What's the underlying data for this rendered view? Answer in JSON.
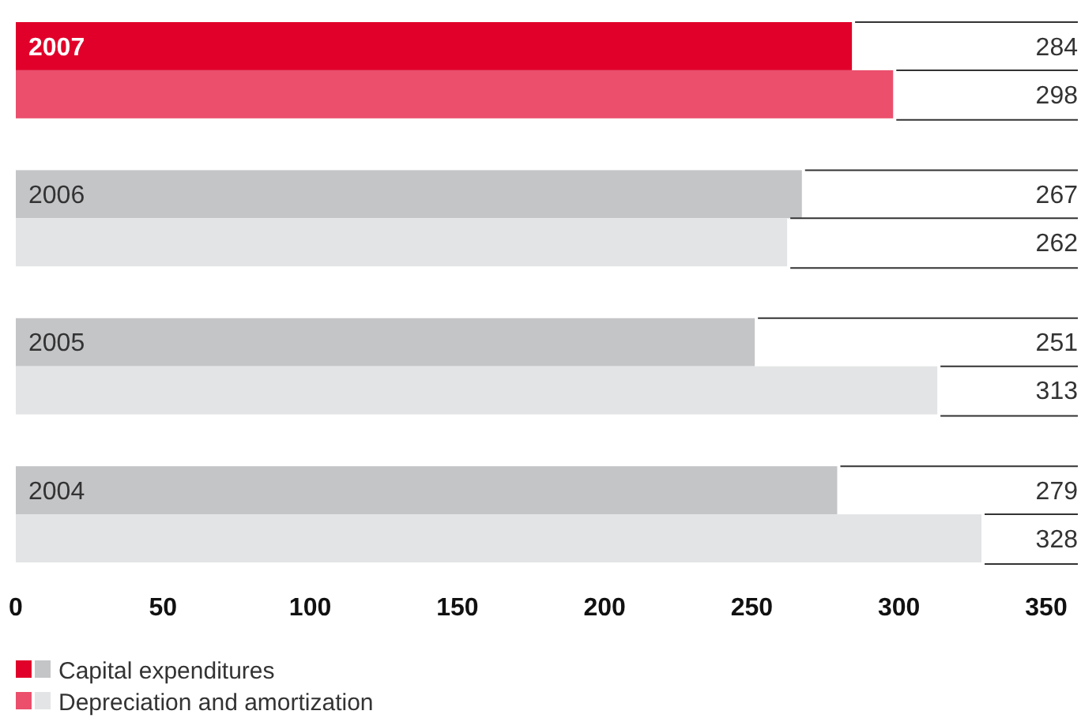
{
  "chart_data": {
    "type": "bar",
    "orientation": "horizontal",
    "categories": [
      "2007",
      "2006",
      "2005",
      "2004"
    ],
    "series": [
      {
        "name": "Capital expenditures",
        "colors": [
          "#e0002a",
          "#c4c5c7",
          "#c4c5c7",
          "#c4c5c7"
        ],
        "values": [
          284,
          267,
          251,
          279
        ],
        "value_labels": [
          "284",
          "267",
          "251",
          "279"
        ]
      },
      {
        "name": "Depreciation and amortization",
        "colors": [
          "#eb4f6c",
          "#e3e4e5",
          "#e3e4e5",
          "#e3e4e5"
        ],
        "values": [
          298,
          262,
          313,
          328
        ],
        "value_labels": [
          "298",
          "262",
          "313",
          "328"
        ]
      }
    ],
    "xlim": [
      0,
      350
    ],
    "xticks": [
      0,
      50,
      100,
      150,
      200,
      250,
      300,
      350
    ],
    "grid": false,
    "legend": "bottom left"
  }
}
